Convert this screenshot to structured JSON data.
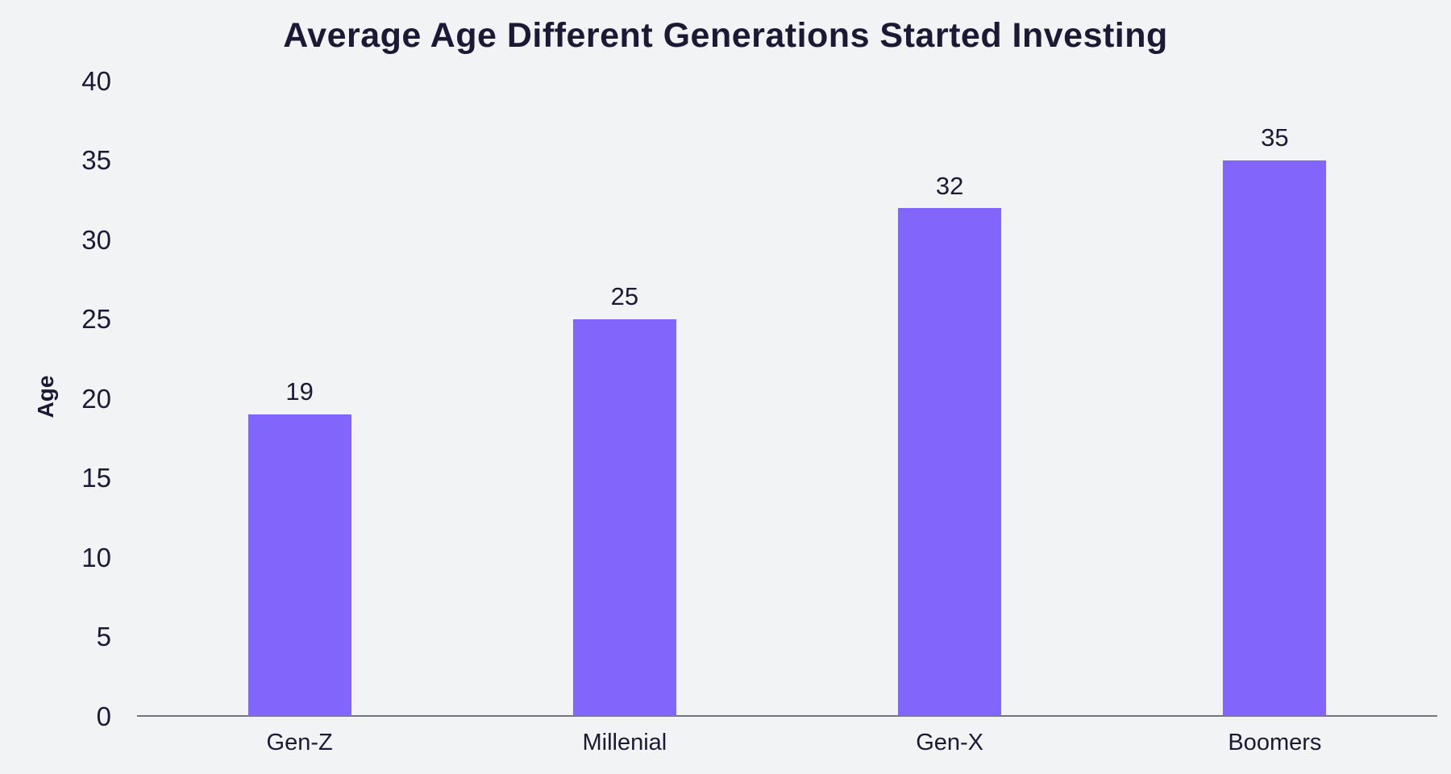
{
  "page": {
    "background_color": "#f2f3f5",
    "text_color": "#1b1936"
  },
  "chart_data": {
    "type": "bar",
    "title": "Average Age Different Generations Started Investing",
    "categories": [
      "Gen-Z",
      "Millenial",
      "Gen-X",
      "Boomers"
    ],
    "values": [
      19,
      25,
      32,
      35
    ],
    "value_labels": [
      "19",
      "25",
      "32",
      "35"
    ],
    "xlabel": "",
    "ylabel": "Age",
    "ylim": [
      0,
      40
    ],
    "yticks": [
      0,
      5,
      10,
      15,
      20,
      25,
      30,
      35,
      40
    ],
    "grid": false,
    "legend": "none",
    "bar_color": "#8265fb",
    "axis_line_color": "#74747e"
  }
}
